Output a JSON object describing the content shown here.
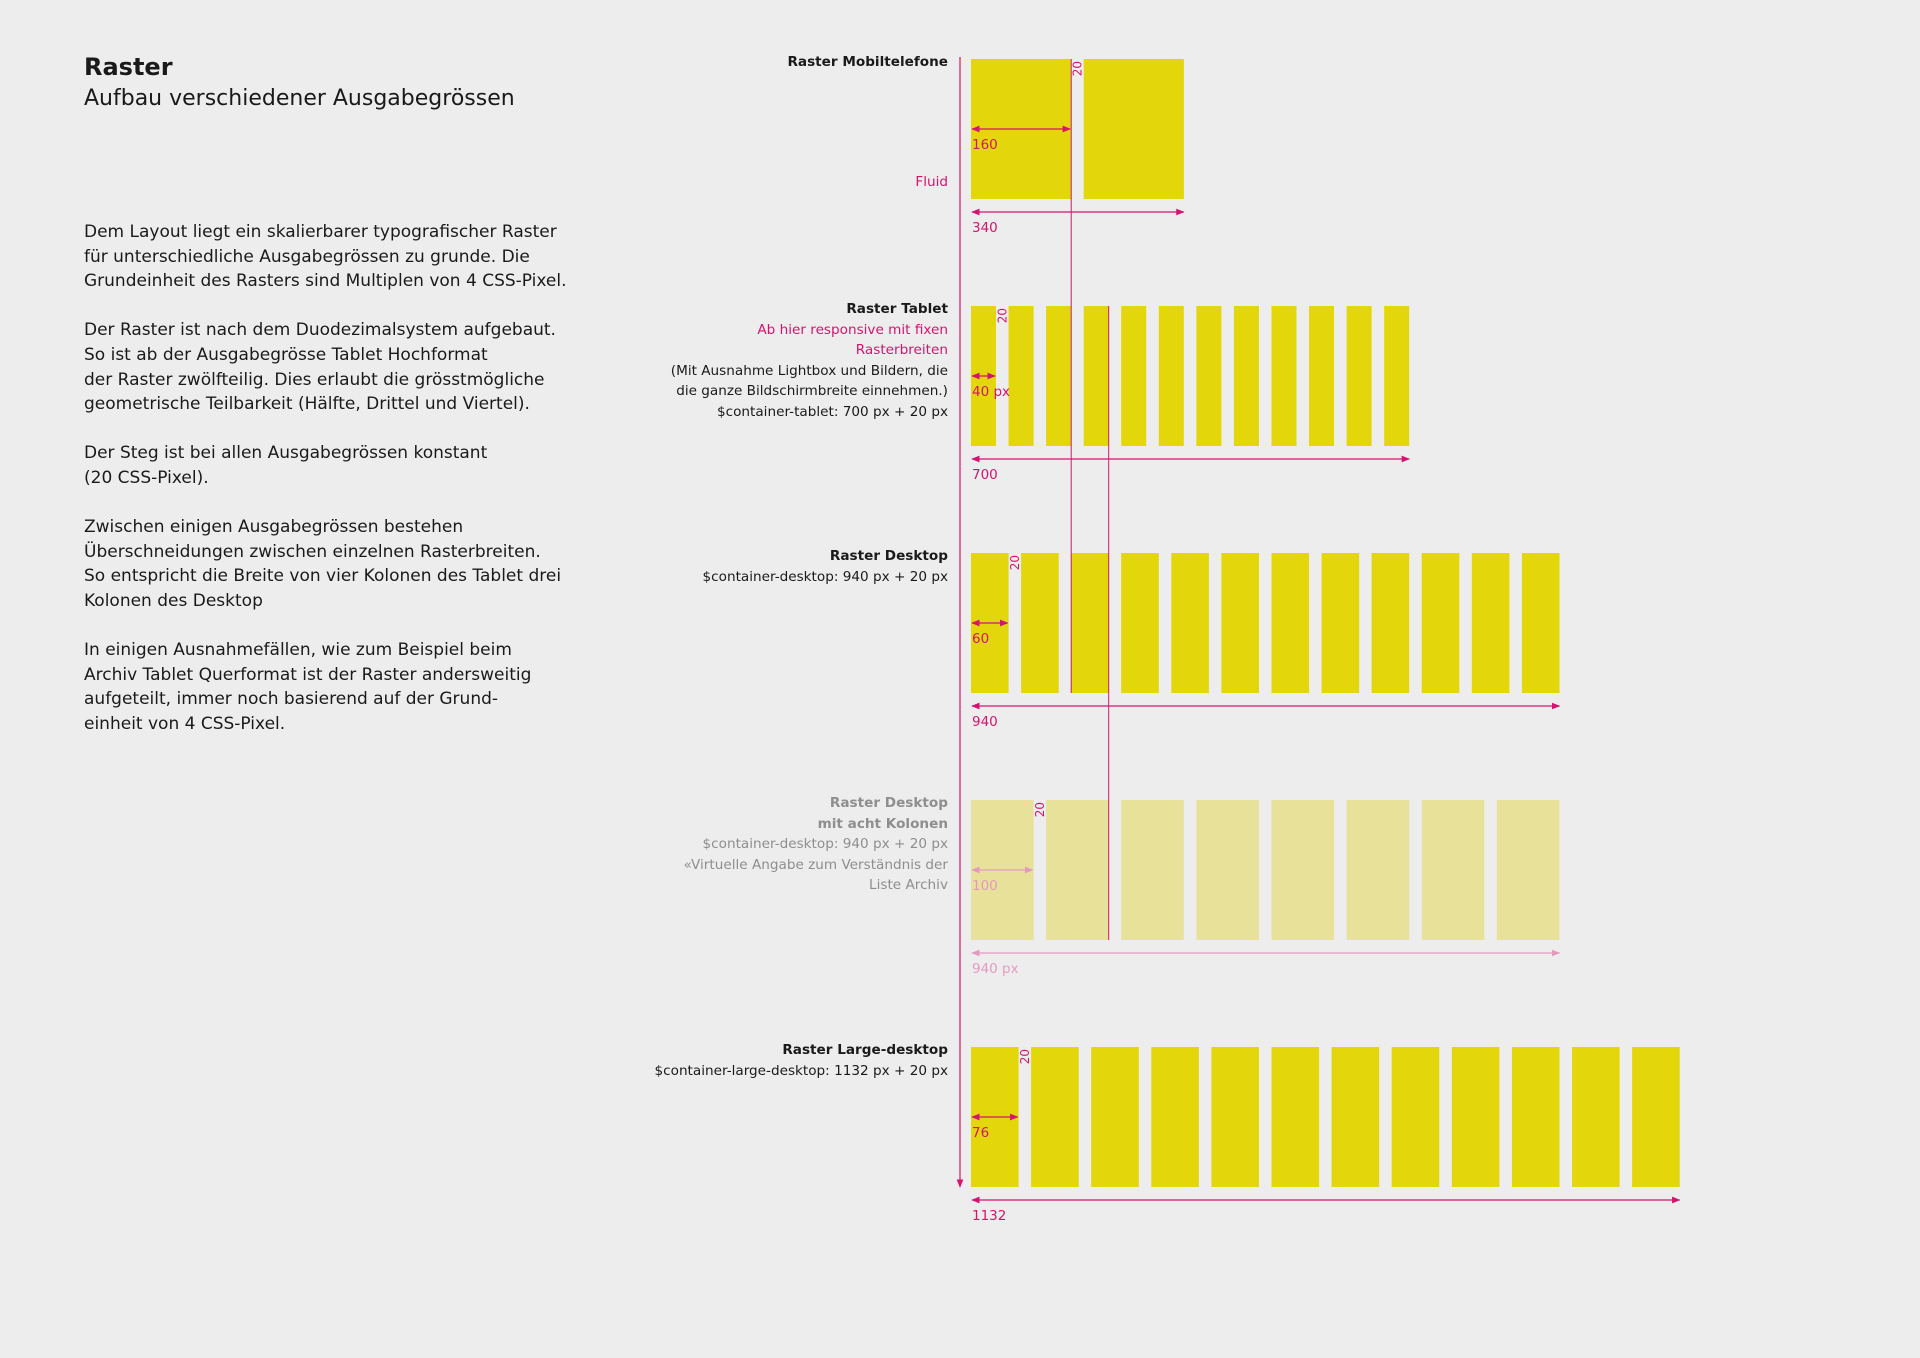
{
  "intro": {
    "title": "Raster",
    "subtitle": "Aufbau verschiedener Ausgabegrössen",
    "paragraphs": [
      "Dem Layout liegt ein skalierbarer typografischer Raster\nfür unterschiedliche Ausgabegrössen zu grunde. Die\nGrundeinheit des Rasters sind Multiplen von 4 CSS-Pixel.",
      "Der Raster ist nach dem Duodezimalsystem aufgebaut.\nSo ist ab der Ausgabegrösse Tablet Hochformat\nder Raster zwölfteilig. Dies erlaubt die grösstmögliche\ngeometrische Teilbarkeit (Hälfte, Drittel und Viertel).",
      "Der Steg ist bei allen Ausgabegrössen konstant\n(20 CSS-Pixel).",
      "Zwischen einigen Ausgabegrössen bestehen\nÜberschneidungen zwischen einzelnen Rasterbreiten.\nSo entspricht die Breite von vier Kolonen des Tablet drei\nKolonen des Desktop",
      "In einigen Ausnahmefällen, wie zum Beispiel beim\nArchiv Tablet Querformat ist der Raster andersweitig\naufgeteilt, immer noch basierend auf der Grund-\neinheit von 4 CSS-Pixel."
    ]
  },
  "colors": {
    "column": "#e3d60a",
    "column_faded": "#e8e19a",
    "accent": "#d4146e",
    "accent_faded": "#e49ac0",
    "background": "#eeeded"
  },
  "gutter_label": "20",
  "grids": [
    {
      "id": "mobile",
      "title": "Raster Mobiltelefone",
      "extra_lines": [],
      "fluid_label": "Fluid",
      "columns": 2,
      "column_width": 160,
      "gutter": 20,
      "total_width": 340,
      "column_label": "160",
      "total_label": "340",
      "faded": false
    },
    {
      "id": "tablet",
      "title": "Raster Tablet",
      "highlight_lines": [
        "Ab hier responsive mit fixen",
        "Rasterbreiten"
      ],
      "extra_lines": [
        "(Mit Ausnahme Lightbox und  Bildern, die",
        "die ganze Bildschirmbreite einnehmen.)",
        "$container-tablet: 700 px + 20 px"
      ],
      "columns": 12,
      "column_width": 40,
      "gutter": 20,
      "total_width": 700,
      "column_label": "40 px",
      "total_label": "700",
      "faded": false
    },
    {
      "id": "desktop",
      "title": "Raster Desktop",
      "extra_lines": [
        "$container-desktop:  940 px + 20 px"
      ],
      "columns": 12,
      "column_width": 60,
      "gutter": 20,
      "total_width": 940,
      "column_label": "60",
      "total_label": "940",
      "faded": false
    },
    {
      "id": "desktop8",
      "title": "Raster Desktop",
      "subtitle": "mit acht Kolonen",
      "extra_lines": [
        "$container-desktop:  940 px + 20 px",
        "«Virtuelle Angabe zum Verständnis der",
        "Liste Archiv"
      ],
      "columns": 8,
      "column_width": 100,
      "gutter": 20,
      "total_width": 940,
      "column_label": "100",
      "total_label": "940 px",
      "faded": true
    },
    {
      "id": "large",
      "title": "Raster Large-desktop",
      "extra_lines": [
        "$container-large-desktop: 1132 px + 20 px"
      ],
      "columns": 12,
      "column_width": 76,
      "gutter": 20,
      "total_width": 1132,
      "column_label": "76",
      "total_label": "1132",
      "faded": false
    }
  ]
}
